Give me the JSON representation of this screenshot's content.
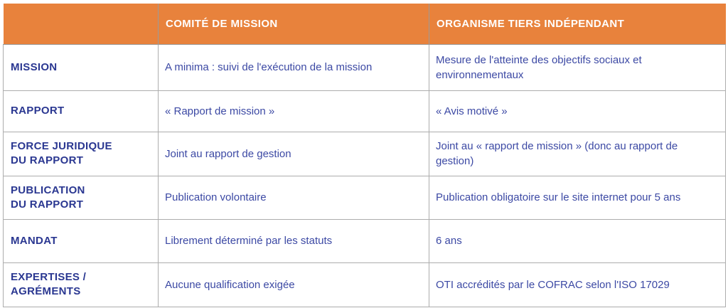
{
  "table": {
    "header": {
      "col1": "",
      "col2": "COMITÉ DE MISSION",
      "col3": "ORGANISME TIERS INDÉPENDANT"
    },
    "rows": [
      {
        "label": "MISSION",
        "comite": "A minima : suivi de l'exécution de la mission",
        "oti": "Mesure de l'atteinte des objectifs sociaux et environnementaux"
      },
      {
        "label": "RAPPORT",
        "comite": "« Rapport de mission »",
        "oti": "« Avis motivé »"
      },
      {
        "label": "FORCE JURIDIQUE\nDU RAPPORT",
        "comite": "Joint au rapport de gestion",
        "oti": "Joint au « rapport de mission » (donc au rapport de gestion)"
      },
      {
        "label": "PUBLICATION\nDU RAPPORT",
        "comite": "Publication volontaire",
        "oti": "Publication obligatoire sur le site internet pour 5 ans"
      },
      {
        "label": "MANDAT",
        "comite": "Librement déterminé par les statuts",
        "oti": "6 ans"
      },
      {
        "label": "EXPERTISES /\nAGRÉMENTS",
        "comite": "Aucune qualification exigée",
        "oti": "OTI accrédités par le COFRAC selon l'ISO 17029"
      }
    ],
    "colors": {
      "header_bg": "#e8823c",
      "header_text": "#ffffff",
      "label_text": "#2a3791",
      "body_text": "#3c49a4",
      "border": "#adadad"
    }
  }
}
